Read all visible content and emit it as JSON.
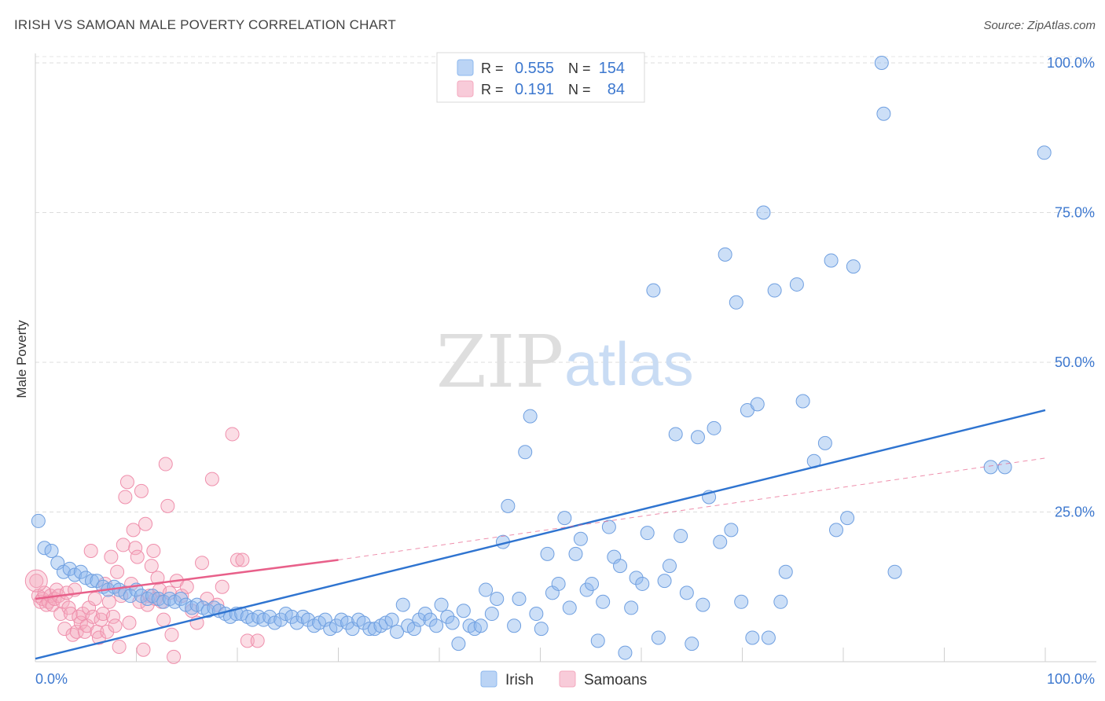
{
  "header": {
    "title": "IRISH VS SAMOAN MALE POVERTY CORRELATION CHART",
    "source": "Source: ZipAtlas.com"
  },
  "watermark": {
    "zip": "ZIP",
    "atlas": "atlas"
  },
  "legend_box": {
    "rows": [
      {
        "r_label": "R =",
        "r_value": "0.555",
        "n_label": "N =",
        "n_value": "154",
        "color": "#8db8ee"
      },
      {
        "r_label": "R =",
        "r_value": " 0.191",
        "n_label": "N =",
        "n_value": "84",
        "color": "#f4a9bf"
      }
    ]
  },
  "bottom_legend": [
    {
      "label": "Irish",
      "color": "#8db8ee"
    },
    {
      "label": "Samoans",
      "color": "#f4a9bf"
    }
  ],
  "colors": {
    "irish_fill": "rgba(141,184,238,0.45)",
    "irish_stroke": "#6f9fe0",
    "irish_line": "#2f74d0",
    "samoan_fill": "rgba(244,169,191,0.40)",
    "samoan_stroke": "#ef8fac",
    "samoan_line": "#e8608a",
    "tick_text": "#3d78cf",
    "grid": "#dcdcdc"
  },
  "chart_data": {
    "type": "scatter",
    "title": "IRISH VS SAMOAN MALE POVERTY CORRELATION CHART",
    "xlabel": "",
    "ylabel": "Male Poverty",
    "xlim": [
      0,
      100
    ],
    "ylim": [
      0,
      100
    ],
    "x_tick_labels": [
      "0.0%",
      "100.0%"
    ],
    "y_ticks": [
      25,
      50,
      75,
      100
    ],
    "y_tick_labels": [
      "25.0%",
      "50.0%",
      "75.0%",
      "100.0%"
    ],
    "grid": true,
    "series": [
      {
        "name": "Irish",
        "R": 0.555,
        "N": 154,
        "trend": {
          "x": [
            0,
            100
          ],
          "y": [
            0.5,
            42
          ]
        },
        "points": [
          [
            0.3,
            23.5
          ],
          [
            0.9,
            19
          ],
          [
            1.6,
            18.5
          ],
          [
            2.2,
            16.5
          ],
          [
            2.8,
            15
          ],
          [
            3.4,
            15.5
          ],
          [
            3.9,
            14.5
          ],
          [
            4.5,
            15
          ],
          [
            5.0,
            14
          ],
          [
            5.6,
            13.5
          ],
          [
            6.1,
            13.5
          ],
          [
            6.7,
            12.5
          ],
          [
            7.2,
            12
          ],
          [
            7.8,
            12.5
          ],
          [
            8.3,
            12
          ],
          [
            8.9,
            11.5
          ],
          [
            9.4,
            11
          ],
          [
            10.0,
            12
          ],
          [
            10.5,
            11
          ],
          [
            11.1,
            10.5
          ],
          [
            11.6,
            11
          ],
          [
            12.2,
            10.5
          ],
          [
            12.7,
            10
          ],
          [
            13.3,
            10.5
          ],
          [
            13.8,
            10
          ],
          [
            14.4,
            10.5
          ],
          [
            14.9,
            9.5
          ],
          [
            15.5,
            9
          ],
          [
            16.0,
            9.5
          ],
          [
            16.6,
            9
          ],
          [
            17.1,
            8.5
          ],
          [
            17.7,
            9
          ],
          [
            18.2,
            8.5
          ],
          [
            18.8,
            8
          ],
          [
            19.3,
            7.5
          ],
          [
            19.9,
            8
          ],
          [
            20.4,
            8
          ],
          [
            21.0,
            7.5
          ],
          [
            21.5,
            7
          ],
          [
            22.1,
            7.5
          ],
          [
            22.6,
            7
          ],
          [
            23.2,
            7.5
          ],
          [
            23.7,
            6.5
          ],
          [
            24.3,
            7
          ],
          [
            24.8,
            8
          ],
          [
            25.4,
            7.5
          ],
          [
            25.9,
            6.5
          ],
          [
            26.5,
            7.5
          ],
          [
            27.0,
            7
          ],
          [
            27.6,
            6
          ],
          [
            28.1,
            6.5
          ],
          [
            28.7,
            7
          ],
          [
            29.2,
            5.5
          ],
          [
            29.8,
            6
          ],
          [
            30.3,
            7
          ],
          [
            30.9,
            6.5
          ],
          [
            31.4,
            5.5
          ],
          [
            32.0,
            7
          ],
          [
            32.5,
            6.5
          ],
          [
            33.1,
            5.5
          ],
          [
            33.6,
            5.5
          ],
          [
            34.2,
            6
          ],
          [
            34.7,
            6.5
          ],
          [
            35.3,
            7
          ],
          [
            35.8,
            5
          ],
          [
            36.4,
            9.5
          ],
          [
            36.9,
            6
          ],
          [
            37.5,
            5.5
          ],
          [
            38.0,
            7
          ],
          [
            38.6,
            8
          ],
          [
            39.1,
            7
          ],
          [
            39.7,
            6
          ],
          [
            40.2,
            9.5
          ],
          [
            40.8,
            7.5
          ],
          [
            41.3,
            6.5
          ],
          [
            41.9,
            3
          ],
          [
            42.4,
            8.5
          ],
          [
            43.0,
            6
          ],
          [
            43.5,
            5.5
          ],
          [
            44.1,
            6
          ],
          [
            44.6,
            12
          ],
          [
            45.2,
            8
          ],
          [
            45.7,
            10.5
          ],
          [
            46.3,
            20
          ],
          [
            46.8,
            26
          ],
          [
            47.4,
            6
          ],
          [
            47.9,
            10.5
          ],
          [
            48.5,
            35
          ],
          [
            49.0,
            41
          ],
          [
            49.6,
            8
          ],
          [
            50.1,
            5.5
          ],
          [
            50.7,
            18
          ],
          [
            51.2,
            11.5
          ],
          [
            51.8,
            13
          ],
          [
            52.4,
            24
          ],
          [
            52.9,
            9
          ],
          [
            53.5,
            18
          ],
          [
            54.0,
            20.5
          ],
          [
            54.6,
            12
          ],
          [
            55.1,
            13
          ],
          [
            55.7,
            3.5
          ],
          [
            56.2,
            10
          ],
          [
            56.8,
            22.5
          ],
          [
            57.3,
            17.5
          ],
          [
            57.9,
            16
          ],
          [
            58.4,
            1.5
          ],
          [
            59.0,
            9
          ],
          [
            59.5,
            14
          ],
          [
            60.1,
            13
          ],
          [
            60.6,
            21.5
          ],
          [
            61.2,
            62
          ],
          [
            61.7,
            4
          ],
          [
            62.3,
            13.5
          ],
          [
            62.8,
            16
          ],
          [
            63.4,
            38
          ],
          [
            63.9,
            21
          ],
          [
            64.5,
            11.5
          ],
          [
            65.0,
            3
          ],
          [
            65.6,
            37.5
          ],
          [
            66.1,
            9.5
          ],
          [
            66.7,
            27.5
          ],
          [
            67.2,
            39
          ],
          [
            67.8,
            20
          ],
          [
            68.3,
            68
          ],
          [
            68.9,
            22
          ],
          [
            69.4,
            60
          ],
          [
            69.9,
            10
          ],
          [
            70.5,
            42
          ],
          [
            71.0,
            4
          ],
          [
            71.5,
            43
          ],
          [
            72.1,
            75
          ],
          [
            72.6,
            4
          ],
          [
            73.2,
            62
          ],
          [
            73.8,
            10
          ],
          [
            74.3,
            15
          ],
          [
            75.4,
            63
          ],
          [
            76.0,
            43.5
          ],
          [
            77.1,
            33.5
          ],
          [
            78.2,
            36.5
          ],
          [
            78.8,
            67
          ],
          [
            79.3,
            22
          ],
          [
            80.4,
            24
          ],
          [
            81.0,
            66
          ],
          [
            83.8,
            100
          ],
          [
            84.0,
            91.5
          ],
          [
            85.1,
            15
          ],
          [
            94.6,
            32.5
          ],
          [
            99.9,
            85
          ],
          [
            96.0,
            32.5
          ]
        ]
      },
      {
        "name": "Samoans",
        "R": 0.191,
        "N": 84,
        "trend": {
          "x": [
            0,
            30
          ],
          "y": [
            10.5,
            17
          ]
        },
        "trend_extension": {
          "x": [
            30,
            100
          ],
          "y": [
            17,
            34
          ]
        },
        "points": [
          [
            0.1,
            13.5
          ],
          [
            0.3,
            11
          ],
          [
            0.5,
            10
          ],
          [
            0.7,
            10.5
          ],
          [
            0.9,
            11.5
          ],
          [
            1.1,
            9.5
          ],
          [
            1.3,
            10
          ],
          [
            1.5,
            11
          ],
          [
            1.7,
            9.5
          ],
          [
            1.9,
            10.5
          ],
          [
            2.1,
            12
          ],
          [
            2.3,
            11
          ],
          [
            2.5,
            8
          ],
          [
            2.7,
            10
          ],
          [
            2.9,
            5.5
          ],
          [
            3.1,
            11.5
          ],
          [
            3.3,
            9
          ],
          [
            3.5,
            8
          ],
          [
            3.7,
            4.5
          ],
          [
            3.9,
            12
          ],
          [
            4.1,
            5
          ],
          [
            4.3,
            7.5
          ],
          [
            4.5,
            6.5
          ],
          [
            4.7,
            8
          ],
          [
            4.9,
            5
          ],
          [
            5.1,
            6
          ],
          [
            5.3,
            9
          ],
          [
            5.5,
            18.5
          ],
          [
            5.7,
            7.5
          ],
          [
            5.9,
            10.5
          ],
          [
            6.1,
            5
          ],
          [
            6.3,
            4
          ],
          [
            6.5,
            7
          ],
          [
            6.7,
            8
          ],
          [
            6.9,
            13
          ],
          [
            7.1,
            5
          ],
          [
            7.3,
            10
          ],
          [
            7.5,
            17.5
          ],
          [
            7.7,
            7.5
          ],
          [
            7.9,
            6
          ],
          [
            8.1,
            15
          ],
          [
            8.3,
            2.5
          ],
          [
            8.5,
            11
          ],
          [
            8.7,
            19.5
          ],
          [
            8.9,
            27.5
          ],
          [
            9.1,
            30
          ],
          [
            9.3,
            6.5
          ],
          [
            9.5,
            13
          ],
          [
            9.7,
            22
          ],
          [
            9.9,
            19
          ],
          [
            10.1,
            17.5
          ],
          [
            10.3,
            10
          ],
          [
            10.5,
            28.5
          ],
          [
            10.7,
            2
          ],
          [
            10.9,
            23
          ],
          [
            11.1,
            9.5
          ],
          [
            11.3,
            11
          ],
          [
            11.5,
            16
          ],
          [
            11.7,
            18.5
          ],
          [
            11.9,
            10.5
          ],
          [
            12.1,
            14
          ],
          [
            12.3,
            12
          ],
          [
            12.5,
            10
          ],
          [
            12.7,
            7
          ],
          [
            12.9,
            33
          ],
          [
            13.1,
            26
          ],
          [
            13.3,
            11.5
          ],
          [
            13.5,
            4.5
          ],
          [
            13.7,
            0.8
          ],
          [
            14.0,
            13.5
          ],
          [
            14.5,
            11
          ],
          [
            15.0,
            12.5
          ],
          [
            15.5,
            8.5
          ],
          [
            16.0,
            6.5
          ],
          [
            16.5,
            16.5
          ],
          [
            17.0,
            10.5
          ],
          [
            17.5,
            30.5
          ],
          [
            18.0,
            9.5
          ],
          [
            18.5,
            12.5
          ],
          [
            19.5,
            38
          ],
          [
            20.0,
            17
          ],
          [
            20.5,
            17
          ],
          [
            21.0,
            3.5
          ],
          [
            22.0,
            3.5
          ]
        ]
      }
    ]
  }
}
